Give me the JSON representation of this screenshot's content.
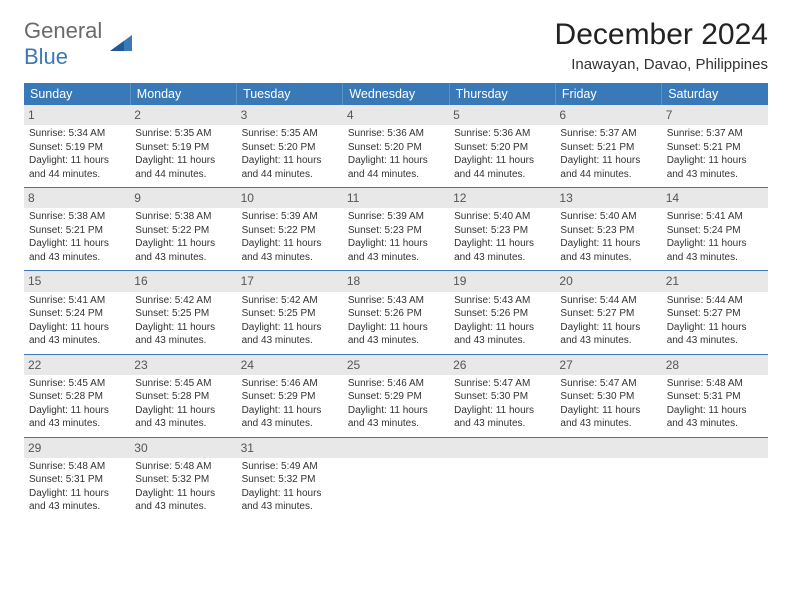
{
  "logo": {
    "word1": "General",
    "word2": "Blue"
  },
  "title": "December 2024",
  "subtitle": "Inawayan, Davao, Philippines",
  "colors": {
    "header_bg": "#3a79b7",
    "header_text": "#ffffff",
    "daynum_bg": "#e8e8e8",
    "rule": "#3a79b7",
    "logo_gray": "#6a6a6a",
    "logo_blue": "#3a79b7"
  },
  "day_headers": [
    "Sunday",
    "Monday",
    "Tuesday",
    "Wednesday",
    "Thursday",
    "Friday",
    "Saturday"
  ],
  "weeks": [
    [
      {
        "n": "1",
        "sr": "5:34 AM",
        "ss": "5:19 PM",
        "dl": "11 hours and 44 minutes."
      },
      {
        "n": "2",
        "sr": "5:35 AM",
        "ss": "5:19 PM",
        "dl": "11 hours and 44 minutes."
      },
      {
        "n": "3",
        "sr": "5:35 AM",
        "ss": "5:20 PM",
        "dl": "11 hours and 44 minutes."
      },
      {
        "n": "4",
        "sr": "5:36 AM",
        "ss": "5:20 PM",
        "dl": "11 hours and 44 minutes."
      },
      {
        "n": "5",
        "sr": "5:36 AM",
        "ss": "5:20 PM",
        "dl": "11 hours and 44 minutes."
      },
      {
        "n": "6",
        "sr": "5:37 AM",
        "ss": "5:21 PM",
        "dl": "11 hours and 44 minutes."
      },
      {
        "n": "7",
        "sr": "5:37 AM",
        "ss": "5:21 PM",
        "dl": "11 hours and 43 minutes."
      }
    ],
    [
      {
        "n": "8",
        "sr": "5:38 AM",
        "ss": "5:21 PM",
        "dl": "11 hours and 43 minutes."
      },
      {
        "n": "9",
        "sr": "5:38 AM",
        "ss": "5:22 PM",
        "dl": "11 hours and 43 minutes."
      },
      {
        "n": "10",
        "sr": "5:39 AM",
        "ss": "5:22 PM",
        "dl": "11 hours and 43 minutes."
      },
      {
        "n": "11",
        "sr": "5:39 AM",
        "ss": "5:23 PM",
        "dl": "11 hours and 43 minutes."
      },
      {
        "n": "12",
        "sr": "5:40 AM",
        "ss": "5:23 PM",
        "dl": "11 hours and 43 minutes."
      },
      {
        "n": "13",
        "sr": "5:40 AM",
        "ss": "5:23 PM",
        "dl": "11 hours and 43 minutes."
      },
      {
        "n": "14",
        "sr": "5:41 AM",
        "ss": "5:24 PM",
        "dl": "11 hours and 43 minutes."
      }
    ],
    [
      {
        "n": "15",
        "sr": "5:41 AM",
        "ss": "5:24 PM",
        "dl": "11 hours and 43 minutes."
      },
      {
        "n": "16",
        "sr": "5:42 AM",
        "ss": "5:25 PM",
        "dl": "11 hours and 43 minutes."
      },
      {
        "n": "17",
        "sr": "5:42 AM",
        "ss": "5:25 PM",
        "dl": "11 hours and 43 minutes."
      },
      {
        "n": "18",
        "sr": "5:43 AM",
        "ss": "5:26 PM",
        "dl": "11 hours and 43 minutes."
      },
      {
        "n": "19",
        "sr": "5:43 AM",
        "ss": "5:26 PM",
        "dl": "11 hours and 43 minutes."
      },
      {
        "n": "20",
        "sr": "5:44 AM",
        "ss": "5:27 PM",
        "dl": "11 hours and 43 minutes."
      },
      {
        "n": "21",
        "sr": "5:44 AM",
        "ss": "5:27 PM",
        "dl": "11 hours and 43 minutes."
      }
    ],
    [
      {
        "n": "22",
        "sr": "5:45 AM",
        "ss": "5:28 PM",
        "dl": "11 hours and 43 minutes."
      },
      {
        "n": "23",
        "sr": "5:45 AM",
        "ss": "5:28 PM",
        "dl": "11 hours and 43 minutes."
      },
      {
        "n": "24",
        "sr": "5:46 AM",
        "ss": "5:29 PM",
        "dl": "11 hours and 43 minutes."
      },
      {
        "n": "25",
        "sr": "5:46 AM",
        "ss": "5:29 PM",
        "dl": "11 hours and 43 minutes."
      },
      {
        "n": "26",
        "sr": "5:47 AM",
        "ss": "5:30 PM",
        "dl": "11 hours and 43 minutes."
      },
      {
        "n": "27",
        "sr": "5:47 AM",
        "ss": "5:30 PM",
        "dl": "11 hours and 43 minutes."
      },
      {
        "n": "28",
        "sr": "5:48 AM",
        "ss": "5:31 PM",
        "dl": "11 hours and 43 minutes."
      }
    ],
    [
      {
        "n": "29",
        "sr": "5:48 AM",
        "ss": "5:31 PM",
        "dl": "11 hours and 43 minutes."
      },
      {
        "n": "30",
        "sr": "5:48 AM",
        "ss": "5:32 PM",
        "dl": "11 hours and 43 minutes."
      },
      {
        "n": "31",
        "sr": "5:49 AM",
        "ss": "5:32 PM",
        "dl": "11 hours and 43 minutes."
      },
      null,
      null,
      null,
      null
    ]
  ],
  "labels": {
    "sunrise": "Sunrise: ",
    "sunset": "Sunset: ",
    "daylight": "Daylight: "
  }
}
